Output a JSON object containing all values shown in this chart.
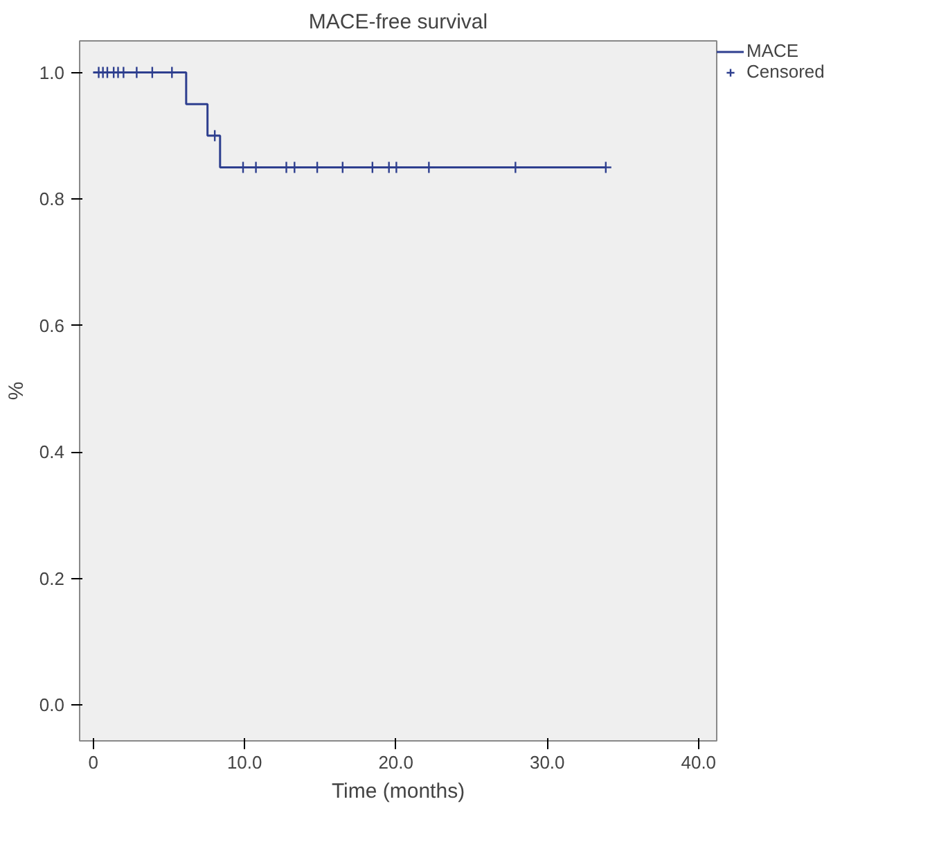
{
  "chart_data": {
    "type": "step",
    "title": "MACE-free survival",
    "xlabel": "Time (months)",
    "ylabel": "%",
    "xlim": [
      -0.9,
      41.2
    ],
    "ylim": [
      -0.057,
      1.05
    ],
    "xticks": [
      0,
      {
        "value": 10,
        "label": "10.0"
      },
      {
        "value": 20,
        "label": "20.0"
      },
      {
        "value": 30,
        "label": "30.0"
      },
      {
        "value": 40,
        "label": "40.0"
      }
    ],
    "yticks": [
      {
        "value": 0,
        "label": "0.0"
      },
      0.2,
      0.4,
      0.6,
      0.8,
      {
        "value": 1,
        "label": "1.0"
      }
    ],
    "grid": false,
    "legend": "top right",
    "series": [
      {
        "name": "MACE",
        "color": "#2e3f8f",
        "marker": "none",
        "x": [
          0,
          6.14,
          7.55,
          8.38,
          33.87
        ],
        "values": [
          1,
          0.95,
          0.9,
          0.85,
          0.85
        ]
      },
      {
        "name": "Censored",
        "type": "scatter",
        "color": "#2e3f8f",
        "marker": "cross",
        "x": [
          0.36,
          0.64,
          0.93,
          1.35,
          1.64,
          2.0,
          2.87,
          3.9,
          5.2,
          8.03,
          9.9,
          10.75,
          12.76,
          13.3,
          14.8,
          16.48,
          18.45,
          19.54,
          20.03,
          22.18,
          27.9,
          33.87
        ],
        "values": [
          1,
          1,
          1,
          1,
          1,
          1,
          1,
          1,
          1,
          0.9,
          0.85,
          0.85,
          0.85,
          0.85,
          0.85,
          0.85,
          0.85,
          0.85,
          0.85,
          0.85,
          0.85,
          0.85
        ]
      }
    ]
  }
}
